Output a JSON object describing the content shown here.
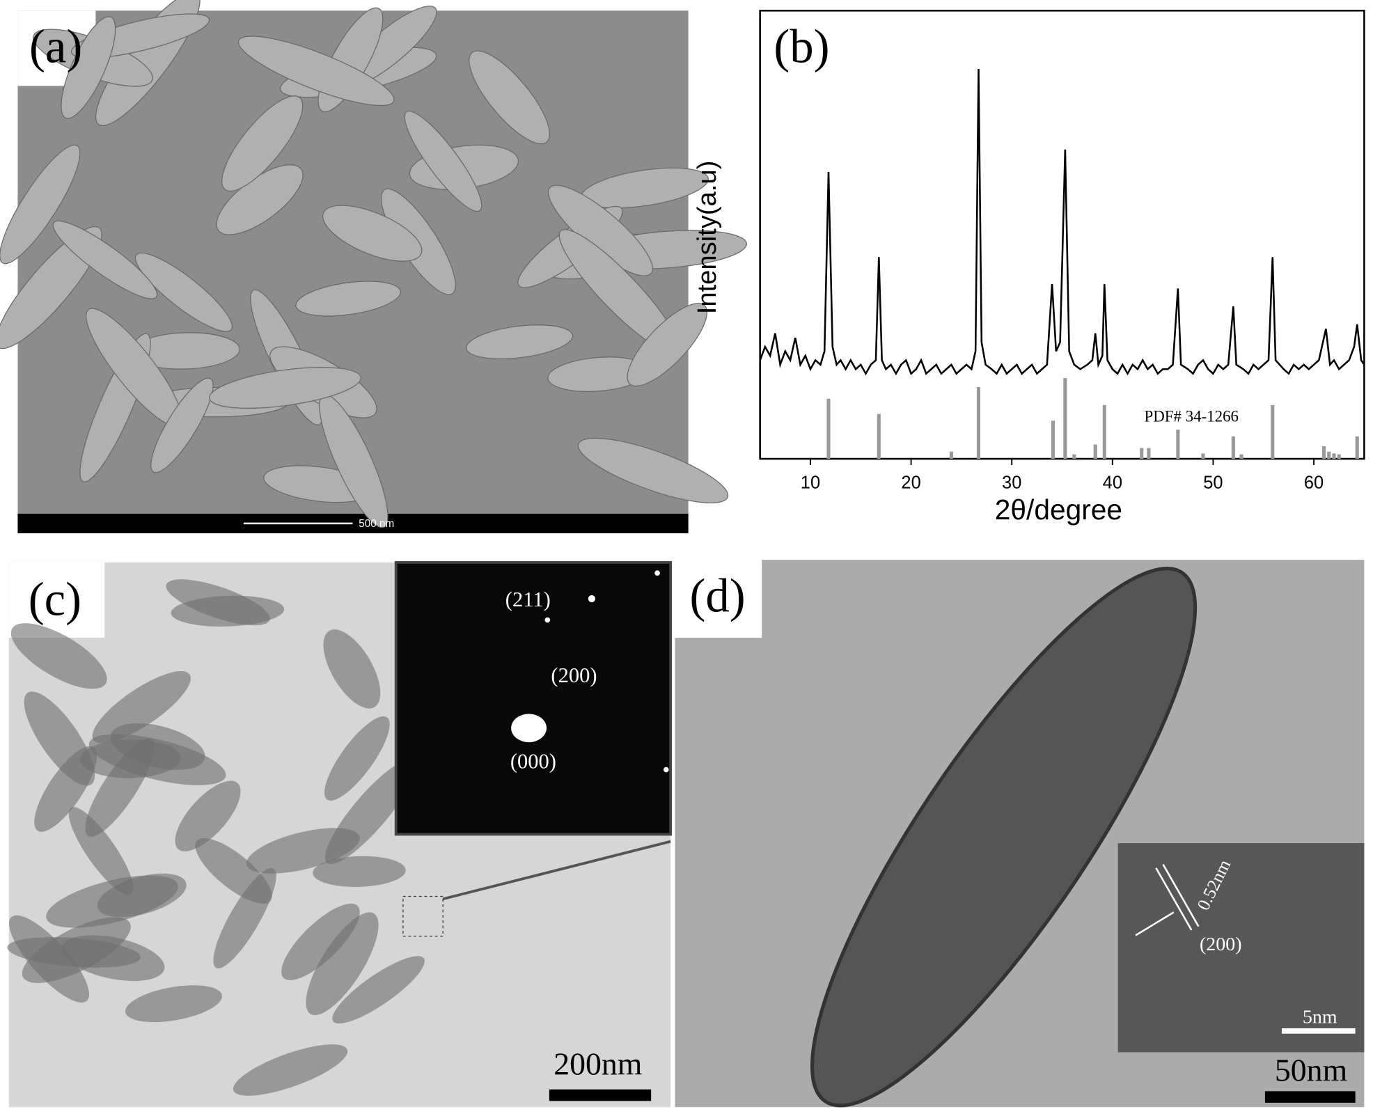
{
  "panels": {
    "a": {
      "label": "(a)",
      "scale_bar": "500 nm"
    },
    "c": {
      "label": "(c)",
      "spots": [
        "(211)",
        "(200)",
        "(000)"
      ],
      "scale_bar": "200nm"
    },
    "d": {
      "label": "(d)",
      "spacing": "0.52nm",
      "plane": "(200)",
      "inset_scale_bar": "5nm",
      "scale_bar": "50nm"
    }
  },
  "chart_data": {
    "type": "line",
    "label": "(b)",
    "y_label": "Intensity(a.u)",
    "x_label": "2θ/degree",
    "annotation": "PDF# 34-1266",
    "xlim": [
      5,
      65
    ],
    "xticks": [
      10,
      20,
      30,
      40,
      50,
      60
    ],
    "ylim": [
      0,
      100
    ],
    "x": [
      5,
      5.5,
      6,
      6.5,
      7,
      7.5,
      8,
      8.5,
      9,
      9.5,
      10,
      10.5,
      11,
      11.4,
      11.8,
      12.2,
      12.6,
      13,
      13.5,
      14,
      14.5,
      15,
      15.5,
      16,
      16.5,
      16.8,
      17.1,
      17.5,
      18,
      18.5,
      19,
      19.5,
      20,
      20.5,
      21,
      21.5,
      22,
      22.5,
      23,
      23.5,
      24,
      24.5,
      25,
      25.5,
      26,
      26.4,
      26.7,
      27,
      27.4,
      28,
      28.5,
      29,
      29.5,
      30,
      30.5,
      31,
      31.5,
      32,
      32.5,
      33,
      33.5,
      34,
      34.4,
      34.8,
      35.3,
      35.7,
      36.2,
      36.8,
      37.5,
      38,
      38.3,
      38.6,
      39,
      39.2,
      39.5,
      40,
      40.5,
      41,
      41.5,
      42,
      42.5,
      43,
      43.5,
      44,
      44.5,
      45,
      45.5,
      46,
      46.5,
      46.8,
      47.5,
      48,
      48.5,
      49,
      49.5,
      50,
      50.5,
      51,
      51.5,
      52,
      52.3,
      53,
      53.5,
      54,
      54.5,
      55,
      55.5,
      55.9,
      56.2,
      57,
      57.5,
      58,
      58.5,
      59,
      59.5,
      60,
      60.5,
      61.2,
      61.6,
      62,
      62.5,
      63,
      63.5,
      64,
      64.3,
      64.7,
      65
    ],
    "series": [
      {
        "color": "#000000",
        "values": [
          22,
          25,
          23,
          28,
          21,
          24,
          22,
          27,
          21,
          23,
          20,
          22,
          21,
          24,
          64,
          25,
          21,
          22,
          20,
          22,
          20,
          21,
          19,
          21,
          22,
          45,
          22,
          20,
          21,
          19,
          21,
          22,
          19,
          20,
          22,
          19,
          20,
          21,
          19,
          20,
          21,
          19,
          20,
          21,
          20,
          24,
          87,
          26,
          21,
          20,
          19,
          21,
          19,
          20,
          21,
          19,
          20,
          21,
          19,
          20,
          21,
          39,
          24,
          26,
          69,
          24,
          21,
          20,
          21,
          22,
          28,
          21,
          23,
          39,
          22,
          20,
          19,
          21,
          19,
          21,
          20,
          22,
          20,
          21,
          19,
          20,
          20,
          21,
          38,
          21,
          20,
          19,
          21,
          22,
          20,
          19,
          21,
          20,
          21,
          34,
          21,
          20,
          19,
          21,
          20,
          21,
          22,
          45,
          22,
          20,
          19,
          21,
          20,
          21,
          20,
          21,
          22,
          29,
          21,
          22,
          20,
          21,
          22,
          25,
          30,
          22,
          21
        ]
      }
    ],
    "sticks": {
      "color": "#999999",
      "x": [
        11.8,
        16.8,
        24,
        26.7,
        34.1,
        35.3,
        36.2,
        38.3,
        39.2,
        42.9,
        43.6,
        46.5,
        49,
        52,
        52.8,
        55.9,
        61,
        61.5,
        62,
        62.5,
        64.3
      ],
      "values": [
        13.4,
        10,
        1.6,
        16,
        8.5,
        18,
        1,
        3.2,
        12,
        2.4,
        2.4,
        6.5,
        1.2,
        5,
        1,
        12,
        2.8,
        1.6,
        1.2,
        1,
        5
      ]
    }
  }
}
